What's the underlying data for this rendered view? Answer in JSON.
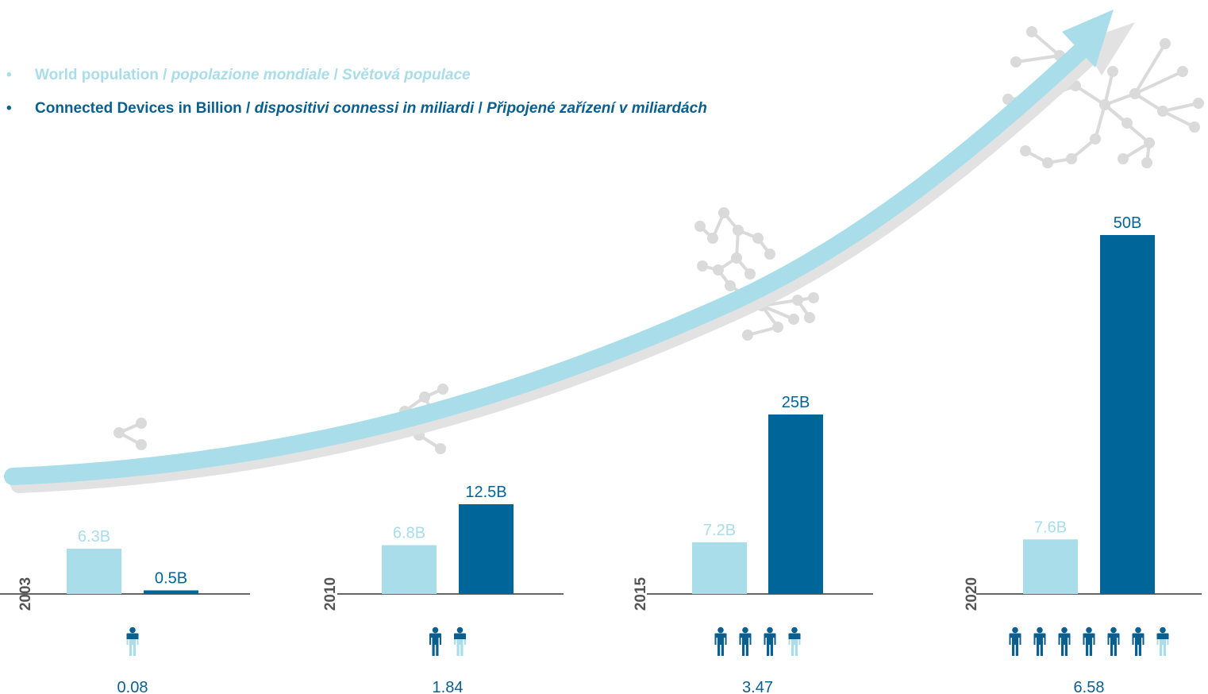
{
  "legend": {
    "population": {
      "bullet": "•",
      "en": "World population",
      "sep1": " / ",
      "it": "popolazione mondiale",
      "sep2": " / ",
      "cz": "Světová populace"
    },
    "devices": {
      "bullet": "•",
      "en": "Connected Devices in Billion",
      "sep1": " / ",
      "it": "dispositivi connessi in miliardi",
      "sep2": " / ",
      "cz": "Připojené zařízení v miliardách"
    }
  },
  "colors": {
    "population": "#a8dde9",
    "devices": "#006699",
    "axis": "#666666",
    "arrow": "#a8dde9",
    "arrow_shadow": "#e2e2e2",
    "network": "#dadada",
    "person_dark": "#0b5f8f",
    "person_light": "#a8dde9"
  },
  "icons": {
    "person": "person-icon",
    "network": "network-cluster-icon",
    "arrow": "growth-arrow-icon"
  },
  "chart_data": {
    "type": "bar",
    "categories": [
      "2003",
      "2010",
      "2015",
      "2020"
    ],
    "series": [
      {
        "name": "World population / popolazione mondiale / Světová populace",
        "values": [
          6.3,
          6.8,
          7.2,
          7.6
        ],
        "labels": [
          "6.3B",
          "6.8B",
          "7.2B",
          "7.6B"
        ]
      },
      {
        "name": "Connected Devices in Billion / dispositivi connessi in miliardi / Připojené zařízení v miliardách",
        "values": [
          0.5,
          12.5,
          25,
          50
        ],
        "labels": [
          "0.5B",
          "12.5B",
          "25B",
          "50B"
        ]
      }
    ],
    "devices_per_person": [
      0.08,
      1.84,
      3.47,
      6.58
    ],
    "devices_per_person_labels": [
      "0.08",
      "1.84",
      "3.47",
      "6.58"
    ],
    "person_icons": {
      "dark": [
        0,
        1,
        3,
        6
      ],
      "light": [
        1,
        1,
        1,
        1
      ]
    },
    "ylim": [
      0,
      50
    ],
    "grid": false,
    "legend_position": "top-left"
  }
}
